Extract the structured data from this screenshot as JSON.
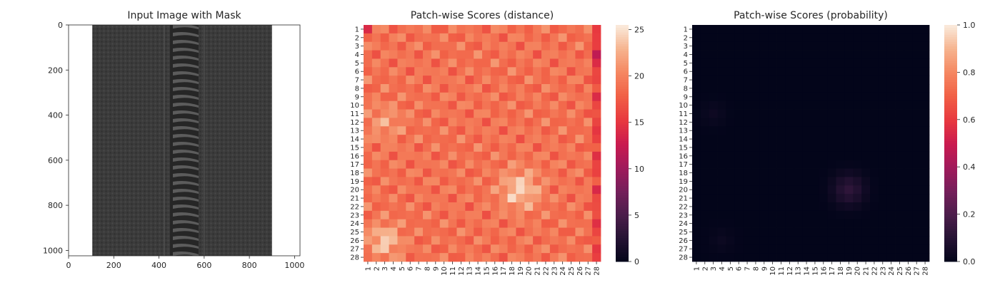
{
  "chart_data": [
    {
      "type": "image",
      "title": "Input Image with Mask",
      "xlim": [
        0,
        1024
      ],
      "ylim": [
        1024,
        0
      ],
      "xticks": [
        0,
        200,
        400,
        600,
        800,
        1000
      ],
      "yticks": [
        0,
        200,
        400,
        600,
        800,
        1000
      ],
      "image_extent_x": [
        105,
        900
      ],
      "zipper_center_x": 512,
      "image_colors": {
        "fabric": "#3d3d3d",
        "teeth": "#2c2c2c",
        "background": "#ffffff"
      }
    },
    {
      "type": "heatmap",
      "title": "Patch-wise Scores (distance)",
      "rows": 28,
      "cols": 28,
      "vmin": 0,
      "vmax": 25.5,
      "colorbar_ticks": [
        0,
        5,
        10,
        15,
        20,
        25
      ],
      "colormap": "rocket",
      "summary": {
        "typical_value": 19,
        "high_regions": [
          {
            "row": 20,
            "col": 19,
            "value": 25
          },
          {
            "row": 26,
            "col": 3,
            "value": 25
          },
          {
            "row": 12,
            "col": 3,
            "value": 22
          }
        ],
        "low_regions": [
          {
            "row": 4,
            "col": 28,
            "value": 12
          },
          {
            "row": 1,
            "col": 1,
            "value": 14
          }
        ]
      }
    },
    {
      "type": "heatmap",
      "title": "Patch-wise Scores (probability)",
      "rows": 28,
      "cols": 28,
      "vmin": 0,
      "vmax": 1,
      "colorbar_ticks": [
        "0.0",
        "0.2",
        "0.4",
        "0.6",
        "0.8",
        "1.0"
      ],
      "colormap": "rocket",
      "summary": {
        "typical_value": 0.0,
        "max_region": {
          "row": 20,
          "col": 19,
          "value": 0.12
        }
      }
    }
  ]
}
